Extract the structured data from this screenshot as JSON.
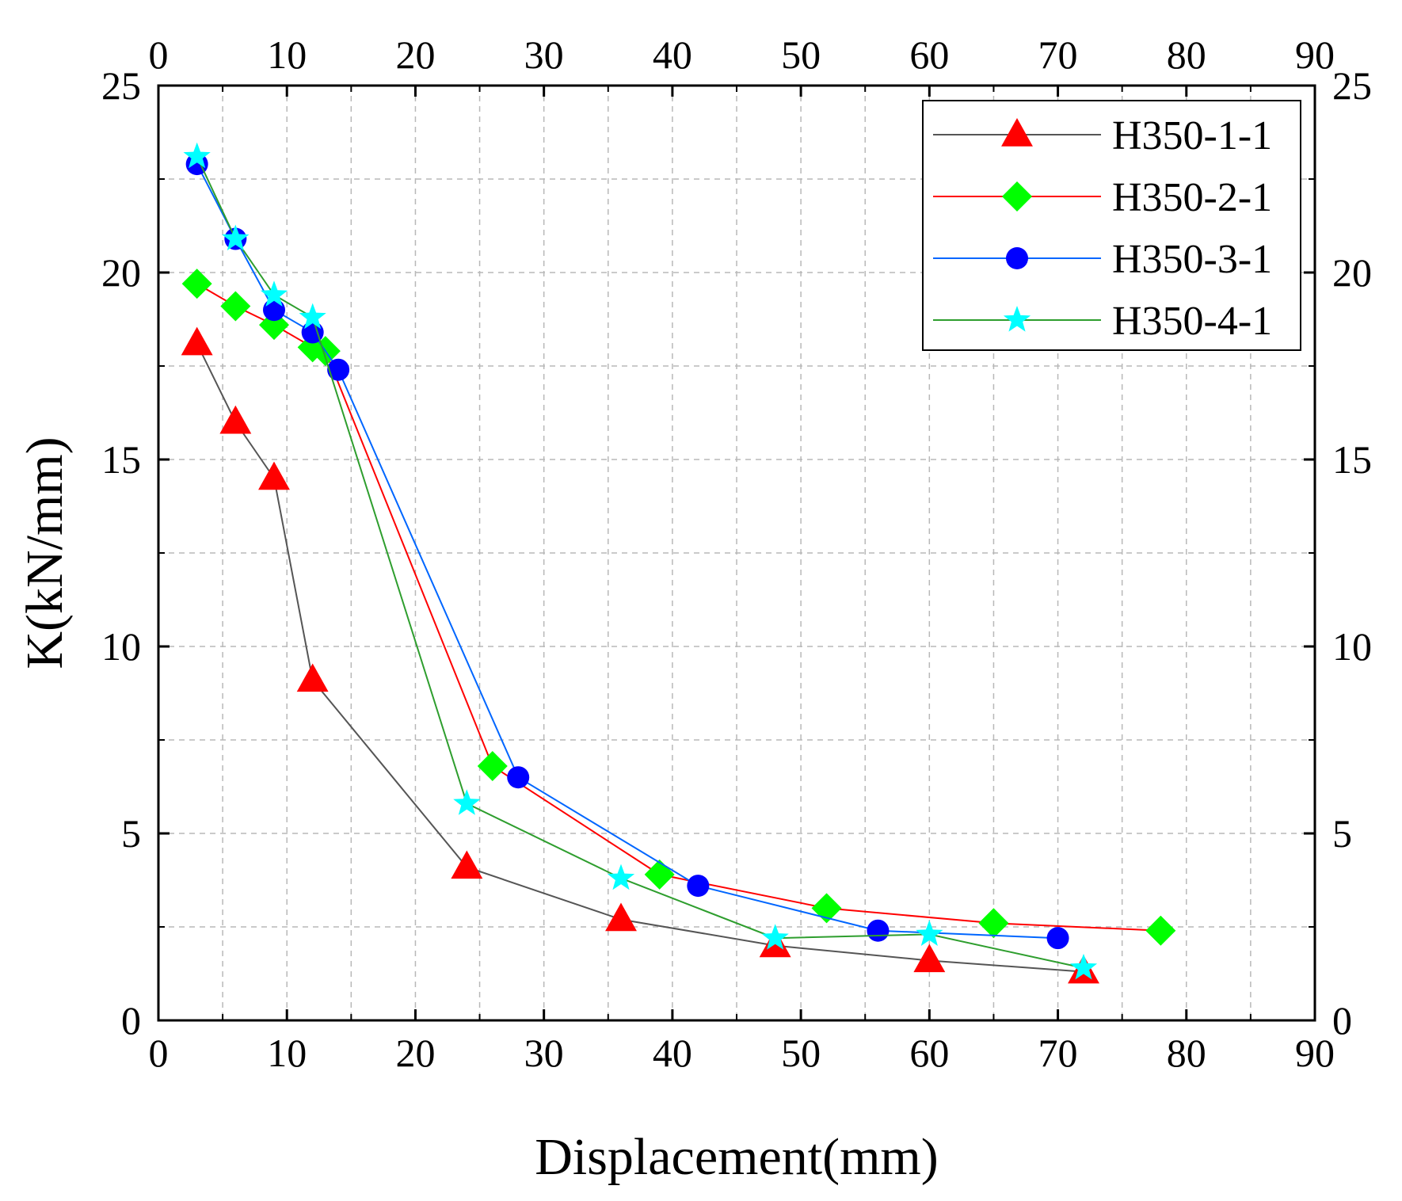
{
  "chart_data": {
    "type": "line",
    "title": "",
    "xlabel": "Displacement(mm)",
    "ylabel": "K(kN/mm)",
    "xlim": [
      0,
      90
    ],
    "ylim": [
      0,
      25
    ],
    "xticks": [
      0,
      10,
      20,
      30,
      40,
      50,
      60,
      70,
      80,
      90
    ],
    "yticks": [
      0,
      5,
      10,
      15,
      20,
      25
    ],
    "grid": true,
    "legend_position": "top-right",
    "series": [
      {
        "name": "H350-1-1",
        "line_color": "#555555",
        "marker": "triangle",
        "marker_color": "#ff0000",
        "x": [
          3,
          6,
          9,
          12,
          24,
          36,
          48,
          60,
          72
        ],
        "y": [
          18.1,
          16.0,
          14.5,
          9.1,
          4.1,
          2.7,
          2.0,
          1.6,
          1.3
        ]
      },
      {
        "name": "H350-2-1",
        "line_color": "#ff0000",
        "marker": "diamond",
        "marker_color": "#00ff00",
        "x": [
          3,
          6,
          9,
          12,
          13,
          26,
          39,
          52,
          65,
          78
        ],
        "y": [
          19.7,
          19.1,
          18.6,
          18.0,
          17.9,
          6.8,
          3.9,
          3.0,
          2.6,
          2.4
        ]
      },
      {
        "name": "H350-3-1",
        "line_color": "#0066ff",
        "marker": "circle",
        "marker_color": "#0000ff",
        "x": [
          3,
          6,
          9,
          12,
          14,
          28,
          42,
          56,
          70
        ],
        "y": [
          22.9,
          20.9,
          19.0,
          18.4,
          17.4,
          6.5,
          3.6,
          2.4,
          2.2
        ]
      },
      {
        "name": "H350-4-1",
        "line_color": "#2e9e2e",
        "marker": "star",
        "marker_color": "#00ffff",
        "x": [
          3,
          6,
          9,
          12,
          24,
          36,
          48,
          60,
          72
        ],
        "y": [
          23.1,
          20.9,
          19.4,
          18.8,
          5.8,
          3.8,
          2.2,
          2.3,
          1.4
        ]
      }
    ]
  }
}
